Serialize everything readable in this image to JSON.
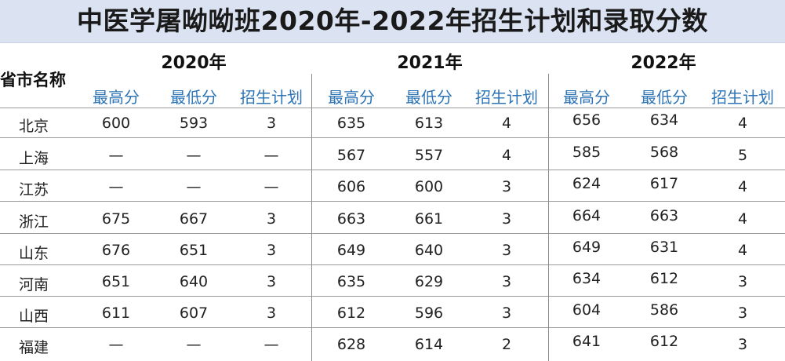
{
  "title": "中医学屠呦呦班2020年-2022年招生计划和录取分数",
  "header": {
    "corner": "省市名称",
    "years": [
      "2020年",
      "2021年",
      "2022年"
    ],
    "subcols": [
      "最高分",
      "最低分",
      "招生计划"
    ]
  },
  "rows": [
    {
      "province": "北京",
      "v": [
        "600",
        "593",
        "3",
        "635",
        "613",
        "4",
        "656",
        "634",
        "4"
      ]
    },
    {
      "province": "上海",
      "v": [
        "—",
        "—",
        "—",
        "567",
        "557",
        "4",
        "585",
        "568",
        "5"
      ]
    },
    {
      "province": "江苏",
      "v": [
        "—",
        "—",
        "—",
        "606",
        "600",
        "3",
        "624",
        "617",
        "4"
      ]
    },
    {
      "province": "浙江",
      "v": [
        "675",
        "667",
        "3",
        "663",
        "661",
        "3",
        "664",
        "663",
        "4"
      ]
    },
    {
      "province": "山东",
      "v": [
        "676",
        "651",
        "3",
        "649",
        "640",
        "3",
        "649",
        "631",
        "4"
      ]
    },
    {
      "province": "河南",
      "v": [
        "651",
        "640",
        "3",
        "635",
        "629",
        "3",
        "634",
        "612",
        "3"
      ]
    },
    {
      "province": "山西",
      "v": [
        "611",
        "607",
        "3",
        "612",
        "596",
        "3",
        "604",
        "586",
        "3"
      ]
    },
    {
      "province": "福建",
      "v": [
        "—",
        "—",
        "—",
        "628",
        "614",
        "2",
        "641",
        "612",
        "3"
      ]
    }
  ]
}
